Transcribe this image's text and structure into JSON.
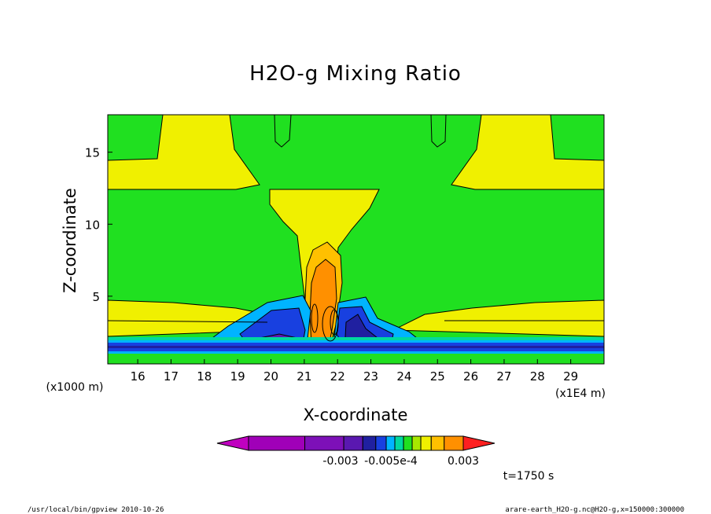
{
  "chart_data": {
    "type": "heatmap",
    "title": "H2O-g Mixing Ratio",
    "xlabel": "X-coordinate",
    "ylabel": "Z-coordinate",
    "x_unit_note": "(x1E4 m)",
    "y_unit_note": "(x1000 m)",
    "x_ticks": [
      "16",
      "17",
      "18",
      "19",
      "20",
      "21",
      "22",
      "23",
      "24",
      "25",
      "26",
      "27",
      "28",
      "29"
    ],
    "y_ticks": [
      "5",
      "10",
      "15"
    ],
    "xlim": [
      15.1,
      30.0
    ],
    "ylim": [
      0.3,
      17.6
    ],
    "colorbar": {
      "labels": [
        "-0.003",
        "-0.005e-4",
        "0.003"
      ],
      "colors": [
        "#c000c0",
        "#a000b8",
        "#7d10b8",
        "#5a18b0",
        "#2020a0",
        "#1840e0",
        "#00b4ff",
        "#00d8a0",
        "#20e020",
        "#a8e800",
        "#f0f000",
        "#ffc000",
        "#ff9000",
        "#ff2020"
      ]
    },
    "time_label": "t=1750 s",
    "grid": false,
    "legend": "bottom"
  },
  "footer": {
    "left": "/usr/local/bin/gpview  2010-10-26",
    "right": "arare-earth_H2O-g.nc@H2O-g,x=150000:300000"
  }
}
